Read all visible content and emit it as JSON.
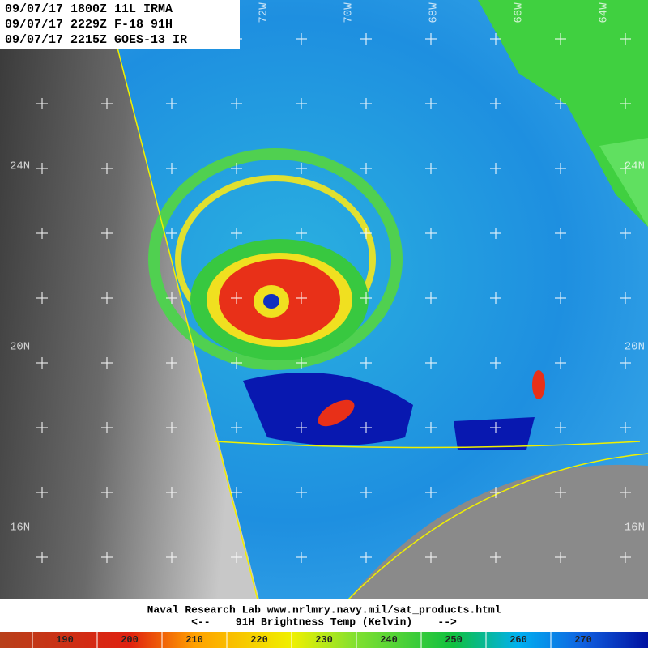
{
  "header": {
    "lines": [
      "09/07/17 1800Z 11L IRMA",
      "09/07/17 2229Z F-18 91H",
      "09/07/17 2215Z GOES-13 IR"
    ]
  },
  "longitudes": [
    "72W",
    "70W",
    "68W",
    "66W",
    "64W"
  ],
  "latitudes": [
    "24N",
    "20N",
    "16N"
  ],
  "footer": {
    "source": "Naval Research Lab  www.nrlmry.navy.mil/sat_products.html",
    "caption": "<--    91H Brightness Temp (Kelvin)    -->"
  },
  "colorbar": {
    "ticks": [
      190,
      200,
      210,
      220,
      230,
      240,
      250,
      260,
      270
    ]
  }
}
